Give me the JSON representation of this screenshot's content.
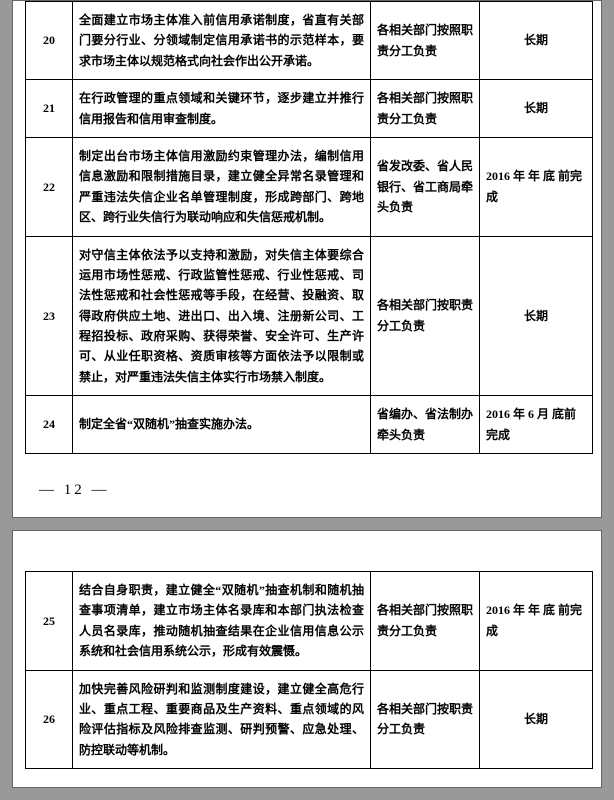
{
  "page1": {
    "rows": [
      {
        "n": "20",
        "desc": "全面建立市场主体准入前信用承诺制度，省直有关部门要分行业、分领域制定信用承诺书的示范样本，要求市场主体以规范格式向社会作出公开承诺。",
        "dept": "各相关部门按照职责分工负责",
        "due": "长期"
      },
      {
        "n": "21",
        "desc": "在行政管理的重点领域和关键环节，逐步建立并推行信用报告和信用审查制度。",
        "dept": "各相关部门按照职责分工负责",
        "due": "长期"
      },
      {
        "n": "22",
        "desc": "制定出台市场主体信用激励约束管理办法，编制信用信息激励和限制措施目录，建立健全异常名录管理和严重违法失信企业名单管理制度，形成跨部门、跨地区、跨行业失信行为联动响应和失信惩戒机制。",
        "dept": "省发改委、省人民银行、省工商局牵头负责",
        "due": "2016 年 年 底 前完成"
      },
      {
        "n": "23",
        "desc": "对守信主体依法予以支持和激励，对失信主体要综合运用市场性惩戒、行政监管性惩戒、行业性惩戒、司法性惩戒和社会性惩戒等手段，在经营、投融资、取得政府供应土地、进出口、出入境、注册新公司、工程招投标、政府采购、获得荣誉、安全许可、生产许可、从业任职资格、资质审核等方面依法予以限制或禁止，对严重违法失信主体实行市场禁入制度。",
        "dept": "各相关部门按职责分工负责",
        "due": "长期"
      },
      {
        "n": "24",
        "desc": "制定全省“双随机”抽查实施办法。",
        "dept": "省编办、省法制办牵头负责",
        "due": "2016 年 6 月 底前完成"
      }
    ],
    "pagenum": "— 12 —"
  },
  "page2": {
    "rows": [
      {
        "n": "25",
        "desc": "结合自身职责，建立健全“双随机”抽查机制和随机抽查事项清单，建立市场主体名录库和本部门执法检查人员名录库，推动随机抽查结果在企业信用信息公示系统和社会信用系统公示，形成有效震慑。",
        "dept": "各相关部门按照职责分工负责",
        "due": "2016 年 年 底 前完成"
      },
      {
        "n": "26",
        "desc": "加快完善风险研判和监测制度建设，建立健全高危行业、重点工程、重要商品及生产资料、重点领域的风险评估指标及风险排查监测、研判预警、应急处理、防控联动等机制。",
        "dept": "各相关部门按职责分工负责",
        "due": "长期"
      }
    ]
  }
}
